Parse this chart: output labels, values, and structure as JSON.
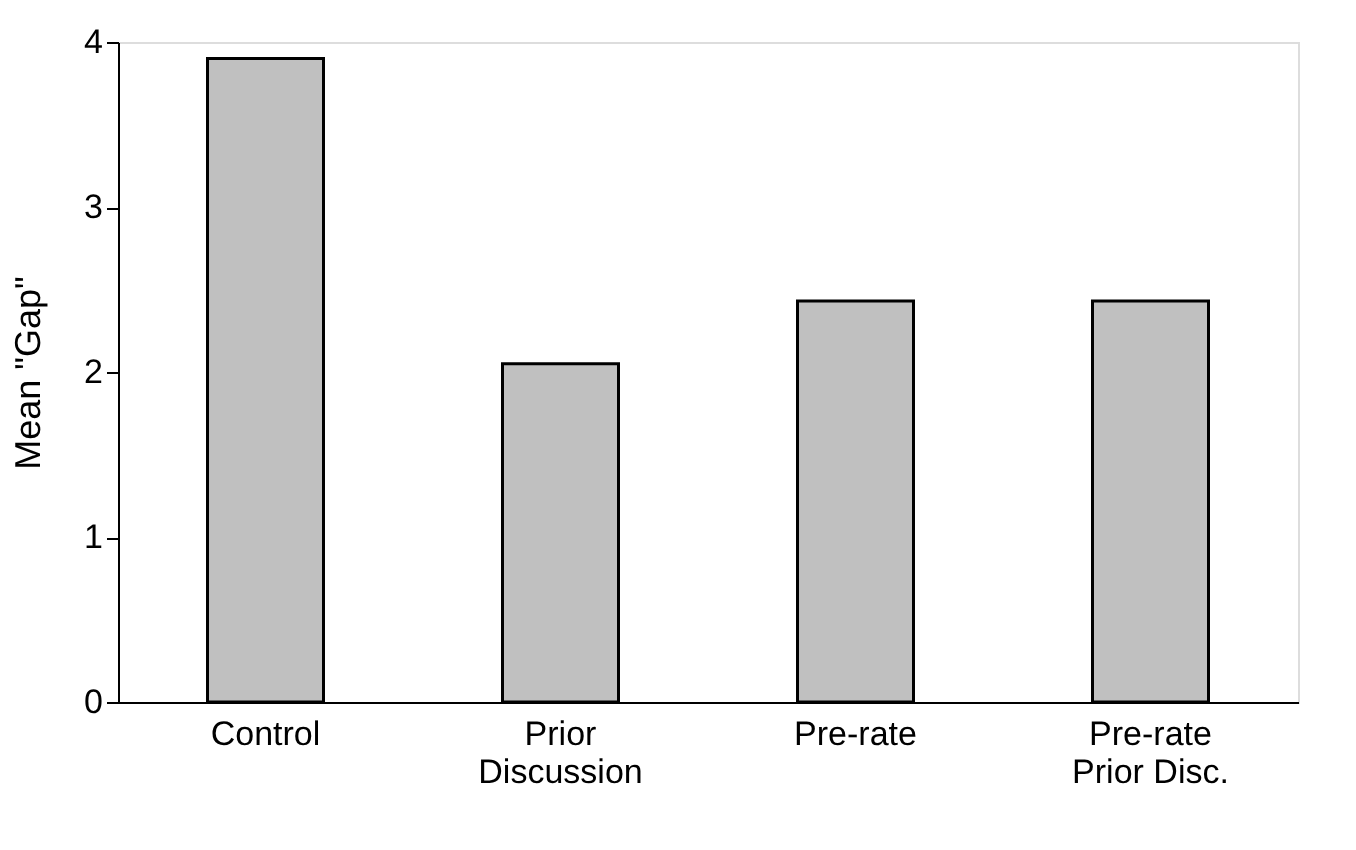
{
  "chart_data": {
    "type": "bar",
    "categories": [
      "Control",
      "Prior\nDiscussion",
      "Pre-rate",
      "Pre-rate\nPrior Disc."
    ],
    "values": [
      3.9,
      2.05,
      2.43,
      2.43
    ],
    "color": "#c0c0c0",
    "ylabel": "Mean \"Gap\"",
    "ylim": [
      0,
      4
    ],
    "yticks": [
      0,
      1,
      2,
      3,
      4
    ],
    "grid": false
  }
}
